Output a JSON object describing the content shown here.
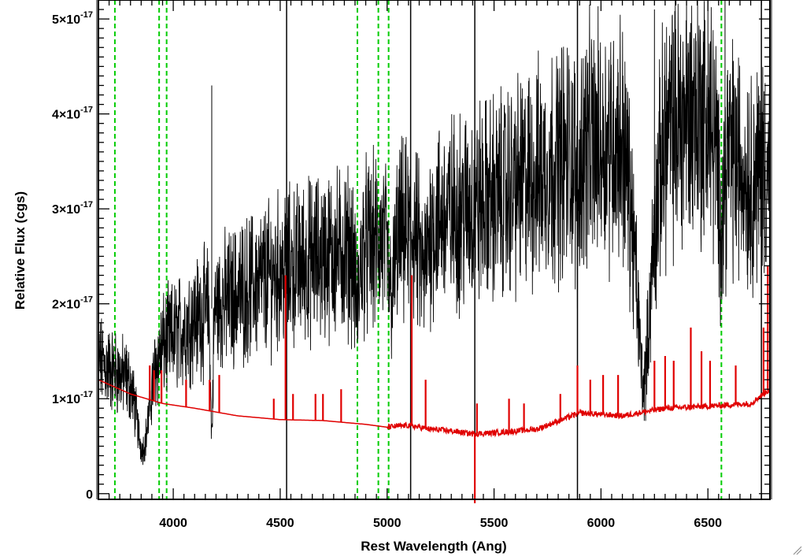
{
  "chart_data": {
    "type": "line",
    "title": "",
    "xlabel": "Rest Wavelength (Ang)",
    "ylabel": "Relative Flux (cgs)",
    "xlim": [
      3650,
      6790
    ],
    "ylim": [
      -6e-19,
      5.2e-17
    ],
    "grid": false,
    "legend": "none",
    "x_ticks": [
      {
        "value": 4000,
        "label": "4000"
      },
      {
        "value": 4500,
        "label": "4500"
      },
      {
        "value": 5000,
        "label": "5000"
      },
      {
        "value": 5500,
        "label": "5500"
      },
      {
        "value": 6000,
        "label": "6000"
      },
      {
        "value": 6500,
        "label": "6500"
      }
    ],
    "y_ticks": [
      {
        "value": 0,
        "mantissa": "0",
        "exponent": ""
      },
      {
        "value": 1e-17,
        "mantissa": "1×10",
        "exponent": "-17"
      },
      {
        "value": 2e-17,
        "mantissa": "2×10",
        "exponent": "-17"
      },
      {
        "value": 3e-17,
        "mantissa": "3×10",
        "exponent": "-17"
      },
      {
        "value": 4e-17,
        "mantissa": "4×10",
        "exponent": "-17"
      },
      {
        "value": 5e-17,
        "mantissa": "5×10",
        "exponent": "-17"
      }
    ],
    "flux_color": "#000000",
    "error_color": "#e00000",
    "marker_color": "#00cc00",
    "flux_anchors": {
      "x": [
        3650,
        3750,
        3850,
        3950,
        4100,
        4300,
        4500,
        4700,
        4900,
        5100,
        5300,
        5500,
        5700,
        5900,
        6100,
        6200,
        6300,
        6450,
        6600,
        6700,
        6790
      ],
      "y": [
        1.4e-17,
        1.25e-17,
        1.15e-17,
        1.55e-17,
        1.85e-17,
        2.1e-17,
        2.35e-17,
        2.5e-17,
        2.6e-17,
        2.75e-17,
        2.95e-17,
        3.1e-17,
        3.35e-17,
        3.65e-17,
        3.75e-17,
        2.1e-17,
        3.8e-17,
        4.05e-17,
        3.6e-17,
        3.3e-17,
        3.5e-17
      ]
    },
    "flux_dips": [
      {
        "center": 3860,
        "width": 40,
        "depth": 7e-18
      },
      {
        "center": 4180,
        "width": 8,
        "depth": 1.3e-17
      },
      {
        "center": 4860,
        "width": 15,
        "depth": 6e-18
      },
      {
        "center": 5020,
        "width": 20,
        "depth": 6e-18
      },
      {
        "center": 5170,
        "width": 25,
        "depth": 5e-18
      },
      {
        "center": 5890,
        "width": 12,
        "depth": 6e-18
      },
      {
        "center": 6200,
        "width": 40,
        "depth": 1e-17
      },
      {
        "center": 6560,
        "width": 20,
        "depth": 8e-18
      }
    ],
    "flux_spikes": [
      {
        "x": 4180,
        "y": 4.3e-17
      },
      {
        "x": 4530,
        "y": 3.6e-17
      },
      {
        "x": 5890,
        "y": 4.9e-17
      },
      {
        "x": 6250,
        "y": 5.1e-17
      },
      {
        "x": 6400,
        "y": 5.25e-17
      },
      {
        "x": 6500,
        "y": 5.25e-17
      },
      {
        "x": 6580,
        "y": 5.25e-17
      }
    ],
    "error_anchors": {
      "x": [
        3650,
        3800,
        3950,
        4100,
        4300,
        4500,
        4700,
        4900,
        5000,
        5100,
        5200,
        5300,
        5400,
        5500,
        5700,
        5900,
        6100,
        6300,
        6500,
        6700,
        6790
      ],
      "y": [
        1.2e-17,
        1.05e-17,
        9.5e-18,
        9e-18,
        8.2e-18,
        7.8e-18,
        7.7e-18,
        7.3e-18,
        7e-18,
        7.2e-18,
        6.8e-18,
        6.6e-18,
        6.3e-18,
        6.4e-18,
        6.8e-18,
        8.5e-18,
        8.2e-18,
        9e-18,
        9.2e-18,
        9.5e-18,
        1.1e-17
      ]
    },
    "error_spikes": [
      {
        "x": 3890,
        "y": 1.35e-17
      },
      {
        "x": 3910,
        "y": 1.3e-17
      },
      {
        "x": 3945,
        "y": 1.3e-17
      },
      {
        "x": 4060,
        "y": 1.2e-17
      },
      {
        "x": 4170,
        "y": 1.2e-17
      },
      {
        "x": 4215,
        "y": 1.25e-17
      },
      {
        "x": 4470,
        "y": 1e-17
      },
      {
        "x": 4525,
        "y": 2.3e-17
      },
      {
        "x": 4560,
        "y": 1.05e-17
      },
      {
        "x": 4665,
        "y": 1.05e-17
      },
      {
        "x": 4700,
        "y": 1.05e-17
      },
      {
        "x": 4785,
        "y": 1.1e-17
      },
      {
        "x": 5115,
        "y": 2.3e-17
      },
      {
        "x": 5180,
        "y": 1.2e-17
      },
      {
        "x": 5410,
        "y": -1e-18
      },
      {
        "x": 5420,
        "y": 9.5e-18
      },
      {
        "x": 5570,
        "y": 1e-17
      },
      {
        "x": 5640,
        "y": 9.5e-18
      },
      {
        "x": 5810,
        "y": 1.05e-17
      },
      {
        "x": 5890,
        "y": 1.35e-17
      },
      {
        "x": 5950,
        "y": 1.2e-17
      },
      {
        "x": 6010,
        "y": 1.25e-17
      },
      {
        "x": 6080,
        "y": 1.25e-17
      },
      {
        "x": 6250,
        "y": 1.4e-17
      },
      {
        "x": 6300,
        "y": 1.45e-17
      },
      {
        "x": 6340,
        "y": 1.4e-17
      },
      {
        "x": 6420,
        "y": 1.75e-17
      },
      {
        "x": 6470,
        "y": 1.5e-17
      },
      {
        "x": 6510,
        "y": 1.4e-17
      },
      {
        "x": 6630,
        "y": 1.35e-17
      },
      {
        "x": 6760,
        "y": 1.75e-17
      },
      {
        "x": 6780,
        "y": 2.4e-17
      }
    ],
    "green_dashed_lines": [
      3727,
      3934,
      3969,
      4861,
      4959,
      5007,
      6563
    ],
    "black_solid_lines": [
      4530,
      5110,
      5410,
      5890,
      6750
    ]
  }
}
